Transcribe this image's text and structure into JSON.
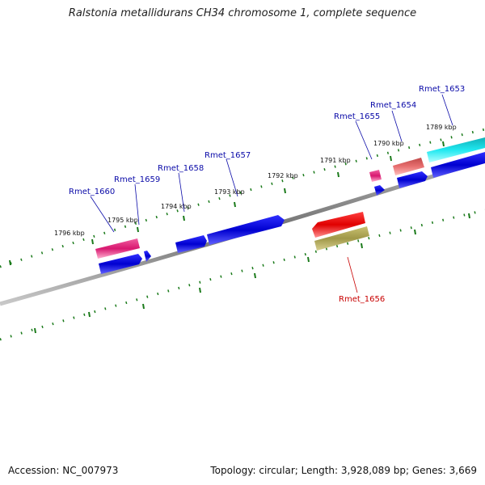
{
  "title": "Ralstonia metallidurans CH34 chromosome 1, complete sequence",
  "footer": {
    "accession": "Accession: NC_007973",
    "summary": "Topology: circular; Length: 3,928,089 bp; Genes: 3,669"
  },
  "colors": {
    "forward_gene": "#e0207a",
    "reverse_gene": "#0a0ad8",
    "highlight_gene": "#e81010",
    "cyan_gene": "#18d8e0",
    "olive_gene": "#a8a050",
    "salmon_gene": "#e06a6a",
    "tick": "#1a7a1a",
    "label_blue": "#0a0aa8",
    "label_red": "#c80000",
    "backbone": "#808080"
  },
  "scale_labels": [
    "1789 kbp",
    "1790 kbp",
    "1791 kbp",
    "1792 kbp",
    "1793 kbp",
    "1794 kbp",
    "1795 kbp",
    "1796 kbp"
  ],
  "gene_labels": [
    {
      "text": "Rmet_1653",
      "color": "blue"
    },
    {
      "text": "Rmet_1654",
      "color": "blue"
    },
    {
      "text": "Rmet_1655",
      "color": "blue"
    },
    {
      "text": "Rmet_1657",
      "color": "blue"
    },
    {
      "text": "Rmet_1658",
      "color": "blue"
    },
    {
      "text": "Rmet_1659",
      "color": "blue"
    },
    {
      "text": "Rmet_1660",
      "color": "blue"
    },
    {
      "text": "Rmet_1656",
      "color": "red"
    }
  ]
}
